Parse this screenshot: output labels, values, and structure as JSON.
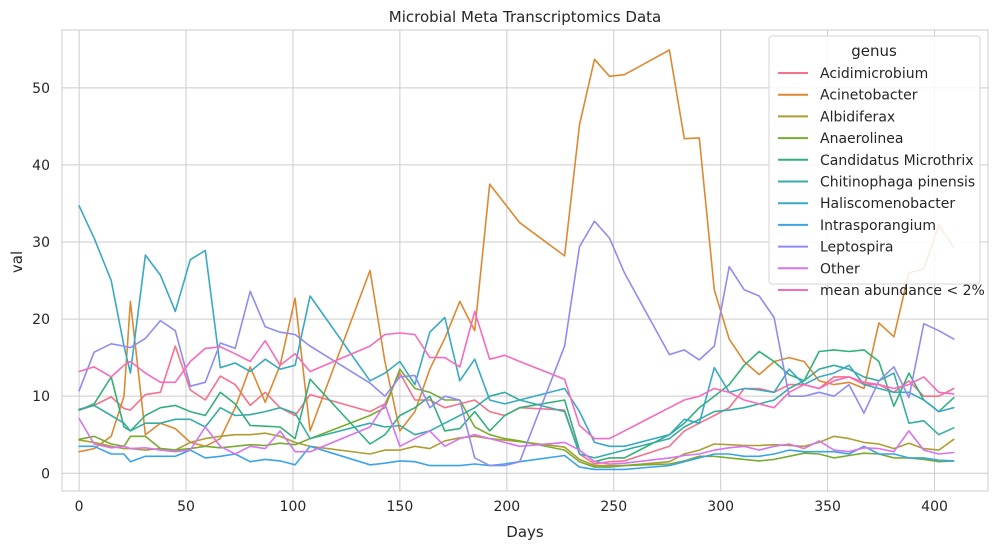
{
  "chart_data": {
    "type": "line",
    "title": "Microbial Meta Transcriptomics Data",
    "xlabel": "Days",
    "ylabel": "val",
    "xlim": [
      -8,
      425
    ],
    "ylim": [
      -2.3,
      57.5
    ],
    "xticks": [
      0,
      50,
      100,
      150,
      200,
      250,
      300,
      350,
      400
    ],
    "yticks": [
      0,
      10,
      20,
      30,
      40,
      50
    ],
    "grid": true,
    "legend": {
      "title": "genus",
      "placement": "top-right"
    },
    "x": [
      0,
      7,
      15,
      21,
      24,
      31,
      38,
      45,
      52,
      59,
      66,
      73,
      80,
      87,
      94,
      101,
      108,
      136,
      143,
      150,
      157,
      164,
      171,
      178,
      185,
      192,
      199,
      206,
      227,
      234,
      241,
      248,
      255,
      276,
      283,
      290,
      297,
      304,
      311,
      318,
      325,
      332,
      339,
      346,
      353,
      360,
      367,
      374,
      381,
      388,
      395,
      402,
      409
    ],
    "series": [
      {
        "name": "Acidimicrobium",
        "color": "#f77189",
        "values": [
          8.2,
          8.8,
          9.9,
          8.4,
          8.2,
          10.2,
          10.5,
          16.5,
          10.8,
          9.5,
          12.6,
          11.5,
          8.8,
          10.5,
          8.5,
          7.5,
          10.2,
          8.0,
          9.0,
          13.0,
          9.5,
          9.5,
          8.5,
          9.0,
          9.5,
          8.0,
          7.5,
          8.5,
          8.2,
          2.5,
          1.2,
          1.5,
          1.6,
          3.5,
          5.5,
          6.5,
          7.5,
          8.5,
          11.0,
          11.0,
          10.5,
          11.5,
          11.5,
          11.0,
          12.5,
          12.5,
          11.5,
          11.5,
          10.5,
          12.0,
          10.0,
          10.0,
          11.0
        ]
      },
      {
        "name": "Acinetobacter",
        "color": "#dc8932",
        "values": [
          2.8,
          3.2,
          4.8,
          10.0,
          22.3,
          5.0,
          6.5,
          5.8,
          4.0,
          3.5,
          4.5,
          8.5,
          13.8,
          9.2,
          14.0,
          22.7,
          5.5,
          26.3,
          14.5,
          5.5,
          8.0,
          13.5,
          17.5,
          22.3,
          18.5,
          37.5,
          35.0,
          32.5,
          28.2,
          45.2,
          53.7,
          51.5,
          51.7,
          54.9,
          43.4,
          43.5,
          23.8,
          17.4,
          14.5,
          12.8,
          14.5,
          15.0,
          14.5,
          12.0,
          11.5,
          11.8,
          11.0,
          19.5,
          17.7,
          26.0,
          26.5,
          32.2,
          29.3
        ]
      },
      {
        "name": "Albidiferax",
        "color": "#ae9d31",
        "values": [
          4.3,
          4.0,
          3.5,
          3.2,
          3.2,
          3.0,
          3.2,
          3.0,
          4.0,
          4.5,
          4.8,
          5.0,
          5.0,
          5.2,
          4.8,
          4.0,
          3.5,
          2.5,
          3.0,
          3.0,
          3.5,
          3.2,
          4.2,
          4.6,
          4.8,
          4.5,
          4.3,
          4.1,
          3.4,
          1.8,
          1.0,
          1.0,
          1.0,
          1.5,
          2.5,
          3.0,
          3.8,
          3.7,
          3.6,
          3.6,
          3.7,
          3.6,
          3.5,
          4.0,
          4.8,
          4.5,
          4.0,
          3.8,
          3.2,
          3.9,
          3.2,
          3.0,
          4.4
        ]
      },
      {
        "name": "Anaerolinea",
        "color": "#77ab31",
        "values": [
          4.4,
          4.8,
          3.8,
          3.5,
          4.8,
          4.8,
          3.2,
          3.0,
          3.2,
          3.5,
          3.3,
          3.5,
          3.7,
          3.6,
          3.9,
          3.7,
          4.5,
          7.5,
          8.5,
          13.5,
          11.0,
          10.5,
          9.5,
          9.5,
          6.0,
          5.0,
          4.5,
          4.2,
          3.0,
          1.5,
          0.8,
          0.8,
          1.0,
          1.2,
          1.6,
          2.2,
          2.2,
          2.0,
          1.8,
          1.6,
          1.8,
          2.2,
          2.6,
          2.5,
          2.0,
          2.3,
          2.6,
          2.5,
          2.0,
          2.0,
          1.8,
          1.5,
          1.6
        ]
      },
      {
        "name": "Candidatus Microthrix",
        "color": "#33b07a",
        "values": [
          8.2,
          9.0,
          12.5,
          6.0,
          5.5,
          7.5,
          8.5,
          8.8,
          8.0,
          7.5,
          10.5,
          9.0,
          6.2,
          6.1,
          6.0,
          4.5,
          12.2,
          3.8,
          5.0,
          7.5,
          8.5,
          10.0,
          5.5,
          5.8,
          8.0,
          5.5,
          7.5,
          8.5,
          9.5,
          3.0,
          1.5,
          2.0,
          2.0,
          5.0,
          6.5,
          8.5,
          10.0,
          11.5,
          14.0,
          15.8,
          14.5,
          12.8,
          12.0,
          15.8,
          16.0,
          15.8,
          16.0,
          14.5,
          8.7,
          13.0,
          9.5,
          8.0,
          9.8
        ]
      },
      {
        "name": "Chitinophaga pinensis",
        "color": "#36ada4",
        "values": [
          8.3,
          8.8,
          7.5,
          6.5,
          5.5,
          6.5,
          6.5,
          7.0,
          7.0,
          6.0,
          8.5,
          7.5,
          7.6,
          8.0,
          8.5,
          7.8,
          4.5,
          6.5,
          6.0,
          6.2,
          5.0,
          5.5,
          6.5,
          7.5,
          8.5,
          10.0,
          10.5,
          9.5,
          8.0,
          2.5,
          2.0,
          2.5,
          3.0,
          4.5,
          6.0,
          7.0,
          8.0,
          8.2,
          8.5,
          9.0,
          9.5,
          11.0,
          12.0,
          13.5,
          14.0,
          13.5,
          12.5,
          12.0,
          13.0,
          6.5,
          6.8,
          5.0,
          5.9
        ]
      },
      {
        "name": "Haliscomenobacter",
        "color": "#38a9c5",
        "values": [
          34.7,
          30.5,
          25.0,
          16.5,
          13.0,
          28.3,
          25.7,
          21.0,
          27.7,
          28.9,
          13.7,
          14.3,
          13.2,
          14.8,
          13.5,
          14.0,
          23.0,
          12.0,
          13.0,
          14.5,
          11.5,
          18.3,
          20.2,
          12.0,
          14.8,
          9.5,
          9.0,
          9.5,
          11.0,
          8.0,
          4.0,
          3.5,
          3.5,
          5.0,
          7.0,
          6.5,
          13.7,
          10.5,
          11.0,
          10.8,
          10.5,
          13.5,
          11.5,
          12.5,
          13.0,
          14.0,
          11.5,
          11.0,
          10.5,
          10.5,
          9.5,
          8.0,
          8.5
        ]
      },
      {
        "name": "Intrasporangium",
        "color": "#3ba3ec",
        "values": [
          3.5,
          3.5,
          2.5,
          2.5,
          1.5,
          2.2,
          2.2,
          2.2,
          3.0,
          2.0,
          2.2,
          2.5,
          1.5,
          1.8,
          1.6,
          1.1,
          3.5,
          1.1,
          1.3,
          1.6,
          1.5,
          1.0,
          1.0,
          1.0,
          1.2,
          1.0,
          1.2,
          1.5,
          2.3,
          0.8,
          0.5,
          0.5,
          0.5,
          1.0,
          1.5,
          2.0,
          2.5,
          2.5,
          2.2,
          2.2,
          2.5,
          3.0,
          2.8,
          2.8,
          2.8,
          2.5,
          3.5,
          2.5,
          2.5,
          2.0,
          2.0,
          1.7,
          1.6
        ]
      },
      {
        "name": "Leptospira",
        "color": "#8e8cf3",
        "values": [
          10.7,
          15.7,
          16.8,
          16.5,
          16.3,
          17.5,
          19.8,
          18.5,
          11.3,
          11.8,
          16.9,
          16.2,
          23.6,
          19.0,
          18.3,
          18.0,
          16.5,
          11.7,
          10.0,
          12.5,
          12.7,
          8.5,
          10.0,
          9.5,
          2.0,
          1.0,
          1.0,
          1.5,
          16.5,
          29.4,
          32.7,
          30.5,
          26.0,
          15.4,
          16.0,
          14.7,
          16.5,
          26.8,
          23.8,
          23.0,
          20.2,
          10.0,
          10.0,
          10.5,
          10.0,
          11.5,
          7.8,
          12.0,
          13.8,
          9.8,
          19.4,
          18.5,
          17.4
        ]
      },
      {
        "name": "Other",
        "color": "#d673f1",
        "values": [
          7.1,
          3.8,
          3.3,
          3.5,
          3.2,
          3.3,
          3.0,
          2.8,
          3.0,
          6.0,
          3.5,
          2.5,
          3.5,
          3.2,
          5.5,
          2.8,
          2.8,
          6.0,
          9.0,
          3.5,
          4.5,
          5.5,
          3.5,
          4.5,
          5.0,
          4.5,
          4.0,
          3.5,
          4.0,
          3.0,
          1.5,
          1.2,
          1.3,
          2.0,
          2.3,
          2.5,
          3.0,
          3.3,
          3.5,
          3.0,
          3.5,
          3.8,
          3.2,
          4.2,
          3.0,
          2.8,
          3.3,
          3.2,
          2.8,
          5.5,
          3.0,
          2.5,
          2.7
        ]
      },
      {
        "name": "mean abundance < 2%",
        "color": "#f66bbd",
        "values": [
          13.2,
          13.8,
          12.5,
          14.0,
          14.5,
          13.0,
          11.8,
          11.8,
          14.5,
          16.2,
          16.4,
          15.5,
          14.5,
          17.2,
          14.0,
          15.5,
          13.2,
          16.5,
          18.0,
          18.2,
          18.0,
          15.0,
          15.0,
          13.8,
          21.0,
          14.8,
          15.3,
          14.5,
          12.2,
          6.2,
          4.5,
          4.5,
          5.5,
          8.5,
          9.5,
          10.0,
          11.0,
          10.5,
          9.5,
          9.0,
          8.5,
          10.5,
          11.5,
          11.0,
          12.0,
          12.5,
          11.8,
          11.5,
          11.0,
          11.5,
          12.5,
          10.5,
          10.3
        ]
      }
    ]
  }
}
